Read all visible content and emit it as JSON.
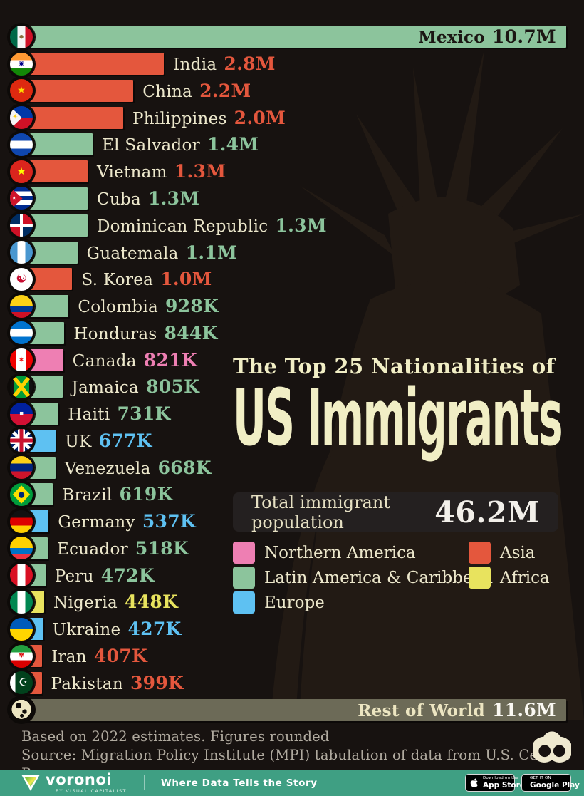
{
  "page_bg": "#171210",
  "chart_data": {
    "type": "bar",
    "orientation": "horizontal",
    "title_sub": "The Top 25 Nationalities of",
    "title_main": "US Immigrants",
    "total_label": "Total immigrant population",
    "total_value": "46.2M",
    "max_value_m": 10.7,
    "regions": {
      "Northern America": "#ee7fb3",
      "Latin America & Caribbean": "#8cc49c",
      "Europe": "#5ec1f2",
      "Asia": "#e4573d",
      "Africa": "#e8e35e",
      "Rest of World": "#6c6a57"
    },
    "legend": {
      "columns": [
        [
          {
            "label": "Northern America",
            "color": "#ee7fb3"
          },
          {
            "label": "Latin America & Caribbean",
            "color": "#8cc49c"
          },
          {
            "label": "Europe",
            "color": "#5ec1f2"
          }
        ],
        [
          {
            "label": "Asia",
            "color": "#e4573d"
          },
          {
            "label": "Africa",
            "color": "#e8e35e"
          }
        ]
      ]
    },
    "rows": [
      {
        "name": "Mexico",
        "value_label": "10.7M",
        "value_m": 10.7,
        "region": "Latin America & Caribbean",
        "label_inside": true,
        "inside_name_color": "#1b1613",
        "inside_value_color": "#1b1613",
        "flag": {
          "bg": "linear-gradient(90deg,#006847 33%,#f5f5f5 33% 67%,#ce1126 67%)",
          "emblem": {
            "char": "●",
            "color": "#8a6d3b",
            "size": 7
          }
        }
      },
      {
        "name": "India",
        "value_label": "2.8M",
        "value_m": 2.8,
        "region": "Asia",
        "flag": {
          "bg": "linear-gradient(180deg,#ff9933 33%,#fff 33% 67%,#128807 67%)",
          "emblem": {
            "char": "◉",
            "color": "#000088",
            "size": 10
          }
        }
      },
      {
        "name": "China",
        "value_label": "2.2M",
        "value_m": 2.2,
        "region": "Asia",
        "flag": {
          "bg": "#de2910",
          "emblem": {
            "char": "★",
            "color": "#ffde00",
            "size": 13
          }
        }
      },
      {
        "name": "Philippines",
        "value_label": "2.0M",
        "value_m": 2.0,
        "region": "Asia",
        "flag": {
          "bg": "linear-gradient(180deg,#0038a8 50%,#ce1126 50%)",
          "overlay": {
            "clip": "polygon(0 0,52% 50%,0 100%)",
            "color": "#f5f5f5"
          },
          "emblem": {
            "char": "☀",
            "color": "#fcd116",
            "size": 9,
            "x": "22%"
          }
        }
      },
      {
        "name": "El Salvador",
        "value_label": "1.4M",
        "value_m": 1.4,
        "region": "Latin America & Caribbean",
        "flag": {
          "bg": "linear-gradient(180deg,#0f47af 33%,#fff 33% 67%,#0f47af 67%)"
        }
      },
      {
        "name": "Vietnam",
        "value_label": "1.3M",
        "value_m": 1.3,
        "region": "Asia",
        "flag": {
          "bg": "#da251d",
          "emblem": {
            "char": "★",
            "color": "#ffff00",
            "size": 14
          }
        }
      },
      {
        "name": "Cuba",
        "value_label": "1.3M",
        "value_m": 1.3,
        "region": "Latin America & Caribbean",
        "flag": {
          "bg": "linear-gradient(180deg,#002a8f 20%,#fff 20% 40%,#002a8f 40% 60%,#fff 60% 80%,#002a8f 80%)",
          "overlay": {
            "clip": "polygon(0 0,55% 50%,0 100%)",
            "color": "#cf142b"
          },
          "emblem": {
            "char": "★",
            "color": "#fff",
            "size": 7,
            "x": "18%"
          }
        }
      },
      {
        "name": "Dominican Republic",
        "value_label": "1.3M",
        "value_m": 1.3,
        "region": "Latin America & Caribbean",
        "flag": {
          "bg": "linear-gradient(#002d62,#002d62) 0 0/44% 44% no-repeat,linear-gradient(#ce1126,#ce1126) 100% 0/44% 44% no-repeat,linear-gradient(#ce1126,#ce1126) 0 100%/44% 44% no-repeat,linear-gradient(#002d62,#002d62) 100% 100%/44% 44% no-repeat,#fff"
        }
      },
      {
        "name": "Guatemala",
        "value_label": "1.1M",
        "value_m": 1.1,
        "region": "Latin America & Caribbean",
        "flag": {
          "bg": "linear-gradient(90deg,#4997d0 33%,#fff 33% 67%,#4997d0 67%)"
        }
      },
      {
        "name": "S. Korea",
        "value_label": "1.0M",
        "value_m": 1.0,
        "region": "Asia",
        "flag": {
          "bg": "#fff",
          "emblem": {
            "char": "☯",
            "color": "#c60c30",
            "size": 17
          }
        }
      },
      {
        "name": "Colombia",
        "value_label": "928K",
        "value_m": 0.928,
        "region": "Latin America & Caribbean",
        "flag": {
          "bg": "linear-gradient(180deg,#fcd116 50%,#003893 50% 75%,#ce1126 75%)"
        }
      },
      {
        "name": "Honduras",
        "value_label": "844K",
        "value_m": 0.844,
        "region": "Latin America & Caribbean",
        "flag": {
          "bg": "linear-gradient(180deg,#0073cf 33%,#fff 33% 67%,#0073cf 67%)"
        }
      },
      {
        "name": "Canada",
        "value_label": "821K",
        "value_m": 0.821,
        "region": "Northern America",
        "flag": {
          "bg": "linear-gradient(90deg,#ee0000 28%,#fff 28% 72%,#ee0000 72%)",
          "emblem": {
            "char": "✶",
            "color": "#ee0000",
            "size": 11
          }
        }
      },
      {
        "name": "Jamaica",
        "value_label": "805K",
        "value_m": 0.805,
        "region": "Latin America & Caribbean",
        "flag": {
          "bg": "linear-gradient(52deg, transparent 44%, #fed100 44% 56%, transparent 56%), linear-gradient(-52deg, transparent 44%, #fed100 44% 56%, transparent 56%), linear-gradient(90deg,#111 16%,#009b3a 16% 84%,#111 84%)"
        }
      },
      {
        "name": "Haiti",
        "value_label": "731K",
        "value_m": 0.731,
        "region": "Latin America & Caribbean",
        "flag": {
          "bg": "linear-gradient(180deg,#00209f 50%,#d21034 50%)",
          "emblem": {
            "char": "▪",
            "color": "#f5f5f5",
            "size": 9
          }
        }
      },
      {
        "name": "UK",
        "value_label": "677K",
        "value_m": 0.677,
        "region": "Europe",
        "flag": {
          "bg": "linear-gradient(90deg, transparent 42%, #c8102e 42% 58%, transparent 58%), linear-gradient(0deg, transparent 42%, #c8102e 42% 58%, transparent 58%), linear-gradient(90deg, transparent 34%, #fff 34% 66%, transparent 66%), linear-gradient(0deg, transparent 34%, #fff 34% 66%, transparent 66%), linear-gradient(45deg, transparent 45%, #fff 45% 55%, transparent 55%), linear-gradient(135deg, transparent 45%, #fff 45% 55%, transparent 55%), #012169"
        }
      },
      {
        "name": "Venezuela",
        "value_label": "668K",
        "value_m": 0.668,
        "region": "Latin America & Caribbean",
        "flag": {
          "bg": "linear-gradient(180deg,#fcd116 33%,#00247d 33% 67%,#cf142b 67%)"
        }
      },
      {
        "name": "Brazil",
        "value_label": "619K",
        "value_m": 0.619,
        "region": "Latin America & Caribbean",
        "flag": {
          "bg": "#009c3b",
          "overlay": {
            "clip": "polygon(50% 10%,88% 50%,50% 90%,12% 50%)",
            "color": "#fedf00"
          },
          "emblem": {
            "char": "●",
            "color": "#002776",
            "size": 11
          }
        }
      },
      {
        "name": "Germany",
        "value_label": "537K",
        "value_m": 0.537,
        "region": "Europe",
        "flag": {
          "bg": "linear-gradient(180deg,#111 33%,#dd0000 33% 67%,#ffce00 67%)"
        }
      },
      {
        "name": "Ecuador",
        "value_label": "518K",
        "value_m": 0.518,
        "region": "Latin America & Caribbean",
        "flag": {
          "bg": "linear-gradient(180deg,#ffd100 50%,#0072c6 50% 75%,#ef3340 75%)"
        }
      },
      {
        "name": "Peru",
        "value_label": "472K",
        "value_m": 0.472,
        "region": "Latin America & Caribbean",
        "flag": {
          "bg": "linear-gradient(90deg,#d91023 33%,#fff 33% 67%,#d91023 67%)"
        }
      },
      {
        "name": "Nigeria",
        "value_label": "448K",
        "value_m": 0.448,
        "region": "Africa",
        "flag": {
          "bg": "linear-gradient(90deg,#008751 33%,#fff 33% 67%,#008751 67%)"
        }
      },
      {
        "name": "Ukraine",
        "value_label": "427K",
        "value_m": 0.427,
        "region": "Europe",
        "flag": {
          "bg": "linear-gradient(180deg,#005bbb 50%,#ffd500 50%)"
        }
      },
      {
        "name": "Iran",
        "value_label": "407K",
        "value_m": 0.407,
        "region": "Asia",
        "flag": {
          "bg": "linear-gradient(180deg,#239f40 33%,#fff 33% 67%,#da0000 67%)",
          "emblem": {
            "char": "✽",
            "color": "#da0000",
            "size": 9
          }
        }
      },
      {
        "name": "Pakistan",
        "value_label": "399K",
        "value_m": 0.399,
        "region": "Asia",
        "flag": {
          "bg": "linear-gradient(90deg,#fff 24%,#01411c 24%)",
          "emblem": {
            "char": "☪",
            "color": "#fff",
            "size": 14,
            "x": "58%"
          }
        }
      },
      {
        "name": "Rest of World",
        "value_label": "11.6M",
        "value_m": 11.6,
        "region": "Rest of World",
        "label_inside": true,
        "inside_name_color": "#ece5c1",
        "inside_value_color": "#faf8f2",
        "globe": true,
        "flag": {
          "bg": "radial-gradient(circle at 38% 32%, #0f0c09 0 13%, transparent 14%), radial-gradient(circle at 64% 58%, #0f0c09 0 11%, transparent 12%), radial-gradient(circle at 52% 76%, #0f0c09 0 8%, transparent 9%), radial-gradient(circle at 50% 48%, #ece5c1 0 58%, transparent 59%), #0f0c09"
        }
      }
    ]
  },
  "footer": {
    "line1": "Based on 2022 estimates. Figures rounded",
    "line2": "Source: Migration Policy Institute (MPI) tabulation of data from U.S. Census Bureau"
  },
  "brandbar": {
    "bg": "#3f9f83",
    "logo_name": "voronoi",
    "logo_sub": "BY VISUAL CAPITALIST",
    "tagline": "Where Data Tells the Story",
    "app_store": {
      "line1": "Download on the",
      "line2": "App Store"
    },
    "google_play": {
      "line1": "GET IT ON",
      "line2": "Google Play"
    }
  }
}
